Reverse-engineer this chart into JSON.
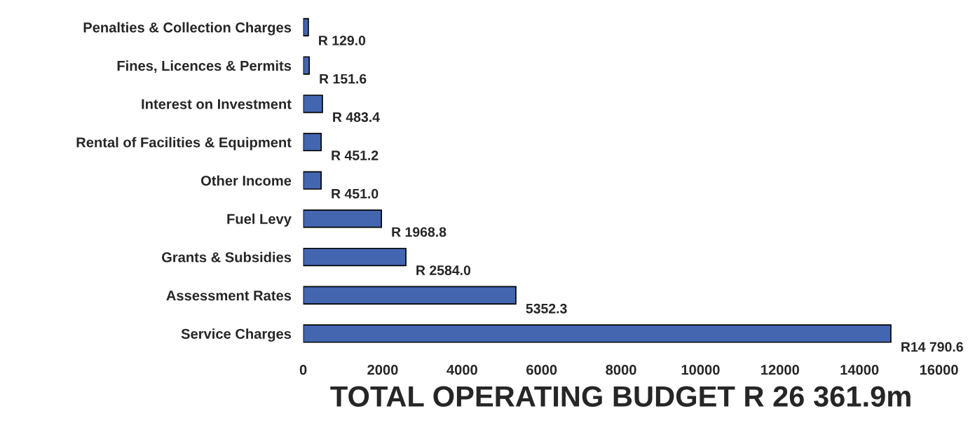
{
  "chart_data": {
    "type": "bar",
    "orientation": "horizontal",
    "xlabel": "TOTAL OPERATING BUDGET R 26 361.9m",
    "categories": [
      "Penalties & Collection Charges",
      "Fines, Licences & Permits",
      "Interest on Investment",
      "Rental of Facilities & Equipment",
      "Other Income",
      "Fuel Levy",
      "Grants & Subsidies",
      "Assessment Rates",
      "Service Charges"
    ],
    "values": [
      129.0,
      151.6,
      483.4,
      451.2,
      451.0,
      1968.8,
      2584.0,
      5352.3,
      14790.6
    ],
    "value_labels": [
      "R 129.0",
      "R 151.6",
      "R 483.4",
      "R 451.2",
      "R 451.0",
      "R 1968.8",
      "R 2584.0",
      "5352.3",
      "R14 790.6"
    ],
    "color": "#4466b0",
    "xlim": [
      0,
      16000
    ],
    "xticks": [
      0,
      2000,
      4000,
      6000,
      8000,
      10000,
      12000,
      14000,
      16000
    ],
    "grid": false,
    "legend": false
  }
}
